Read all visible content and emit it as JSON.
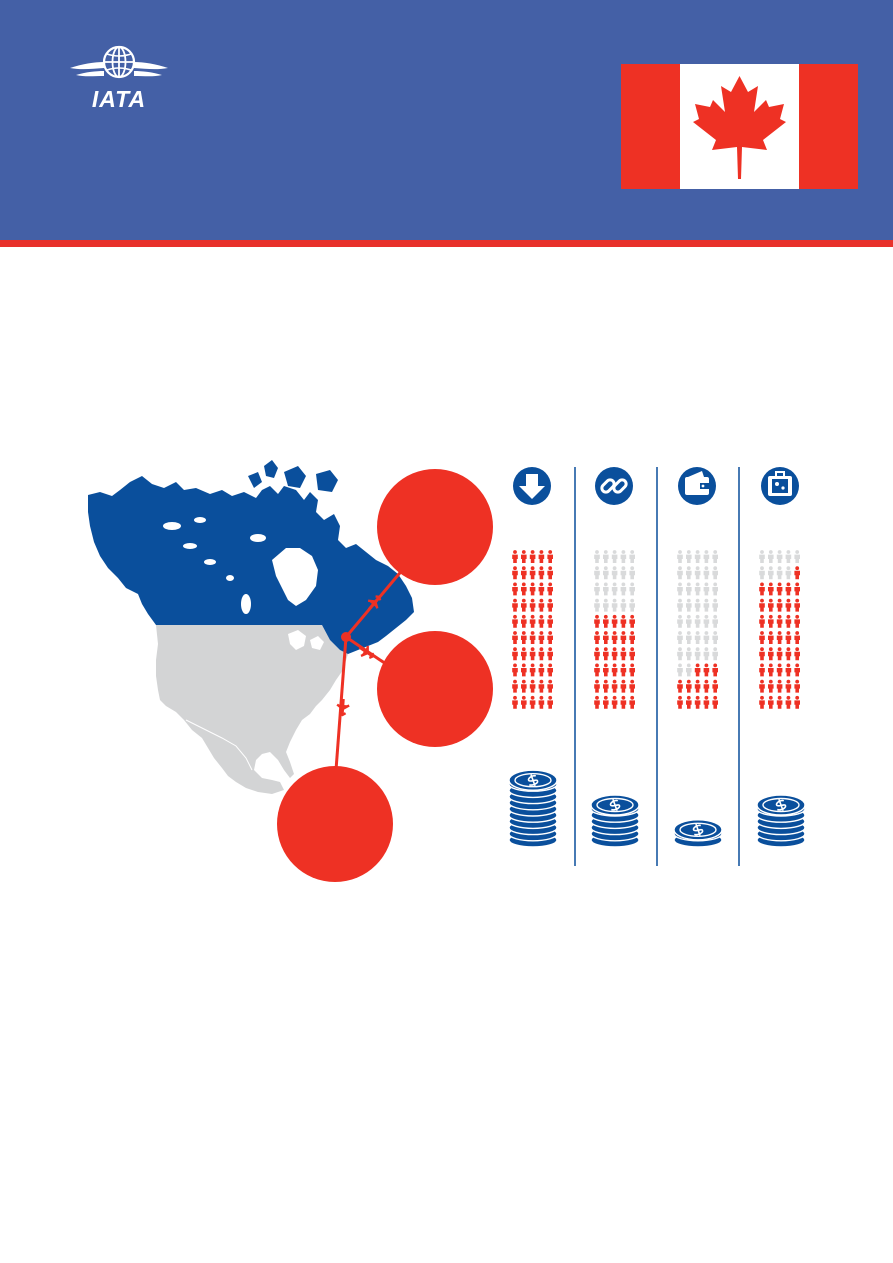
{
  "logo": {
    "text": "IATA",
    "icon": "globe-wings-icon"
  },
  "flag": {
    "country": "Canada",
    "icon": "maple-leaf-icon"
  },
  "colors": {
    "header": "#4460a6",
    "stripe": "#e8312b",
    "red": "#ee3124",
    "blue": "#0a4f9c",
    "grey": "#d3d4d5",
    "figureGrey": "#d9dadb"
  },
  "categories": [
    {
      "icon": "arrow-down-icon",
      "red_figures": 50,
      "coin_stack": 10
    },
    {
      "icon": "chain-link-icon",
      "red_figures": 30,
      "coin_stack": 6
    },
    {
      "icon": "wallet-icon",
      "red_figures": 13,
      "coin_stack": 2
    },
    {
      "icon": "suitcase-icon",
      "red_figures": 41,
      "coin_stack": 6
    }
  ]
}
